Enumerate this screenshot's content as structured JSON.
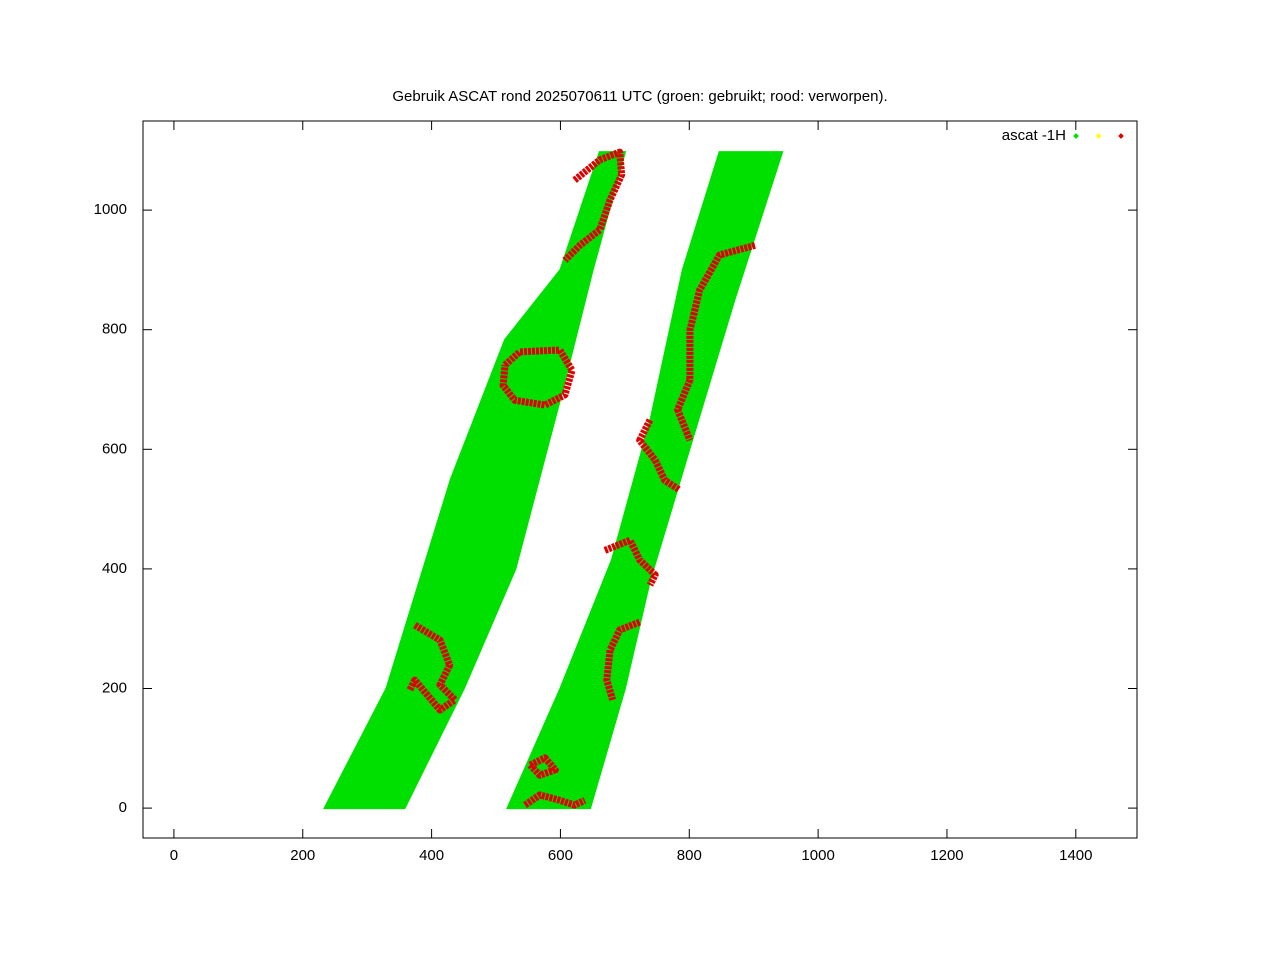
{
  "chart_data": {
    "type": "scatter",
    "title": "Gebruik ASCAT rond 2025070611 UTC (groen: gebruikt; rood: verworpen).",
    "xlim": [
      -48,
      1495
    ],
    "ylim": [
      -50,
      1149
    ],
    "xticks": [
      0,
      200,
      400,
      600,
      800,
      1000,
      1200,
      1400
    ],
    "yticks": [
      0,
      200,
      400,
      600,
      800,
      1000
    ],
    "legend": {
      "label": "ascat -1H",
      "colors": [
        "#00e000",
        "#ffff00",
        "#e00000"
      ],
      "position": "top-right"
    },
    "series": [
      {
        "color": "#00e000",
        "shapes": [
          {
            "x": [
              234,
              358,
              450,
              530,
              599,
              650,
              700,
              661,
              600,
              514,
              430,
              330
            ],
            "y": [
              0,
              0,
              200,
              400,
              682,
              900,
              1097,
              1097,
              900,
              783,
              550,
              200
            ]
          },
          {
            "x": [
              518,
              646,
              700,
              739,
              800,
              870,
              944,
              847,
              790,
              740,
              680,
              600
            ],
            "y": [
              0,
              0,
              200,
              381,
              600,
              850,
              1097,
              1097,
              900,
              650,
              415,
              200
            ]
          }
        ]
      },
      {
        "color": "#e00000",
        "shapes": [
          {
            "x": [
              514,
              537,
              599,
              618,
              607,
              576,
              529,
              511,
              514
            ],
            "y": [
              741,
              763,
              766,
              732,
              691,
              674,
              682,
              707,
              741
            ]
          },
          {
            "x": [
              622,
              661,
              692,
              695,
              677,
              661,
              630,
              607
            ],
            "y": [
              1050,
              1084,
              1097,
              1059,
              1017,
              967,
              941,
              916
            ]
          },
          {
            "x": [
              902,
              847,
              816,
              801,
              801,
              782,
              801
            ],
            "y": [
              941,
              925,
              866,
              799,
              716,
              666,
              615
            ]
          },
          {
            "x": [
              739,
              723,
              747,
              762,
              785
            ],
            "y": [
              649,
              615,
              582,
              548,
              532
            ]
          },
          {
            "x": [
              669,
              708,
              723,
              747,
              739
            ],
            "y": [
              431,
              448,
              415,
              390,
              373
            ]
          },
          {
            "x": [
              723,
              692,
              677,
              672,
              681
            ],
            "y": [
              311,
              298,
              264,
              214,
              181
            ]
          },
          {
            "x": [
              374,
              413,
              428,
              413,
              436,
              413,
              374,
              366
            ],
            "y": [
              306,
              281,
              239,
              206,
              181,
              164,
              214,
              197
            ]
          },
          {
            "x": [
              545,
              568,
              599,
              622,
              638
            ],
            "y": [
              5,
              22,
              13,
              5,
              13
            ]
          },
          {
            "x": [
              553,
              576,
              592,
              568,
              553
            ],
            "y": [
              72,
              84,
              64,
              55,
              72
            ]
          }
        ]
      }
    ]
  }
}
